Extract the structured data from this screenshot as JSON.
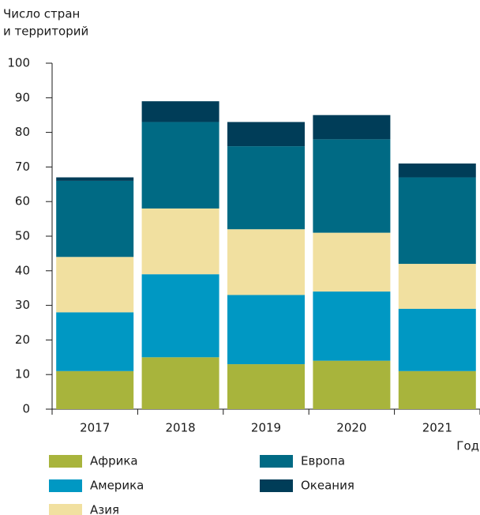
{
  "chart_data": {
    "type": "stacked_bar",
    "ylabel": [
      "Число стран",
      "и территорий"
    ],
    "xlabel": "Год",
    "categories": [
      "2017",
      "2018",
      "2019",
      "2020",
      "2021"
    ],
    "series": [
      {
        "name": "Африка",
        "color": "#a8b43c",
        "values": [
          11,
          15,
          13,
          14,
          11
        ]
      },
      {
        "name": "Америка",
        "color": "#0098c3",
        "values": [
          17,
          24,
          20,
          20,
          18
        ]
      },
      {
        "name": "Азия",
        "color": "#f1e0a0",
        "values": [
          16,
          19,
          19,
          17,
          13
        ]
      },
      {
        "name": "Европа",
        "color": "#006a84",
        "values": [
          22,
          25,
          24,
          27,
          25
        ]
      },
      {
        "name": "Океания",
        "color": "#003d58",
        "values": [
          1,
          6,
          7,
          7,
          4
        ]
      }
    ],
    "ylim": [
      0,
      100
    ],
    "yticks": [
      0,
      10,
      20,
      30,
      40,
      50,
      60,
      70,
      80,
      90,
      100
    ],
    "grid": false
  }
}
